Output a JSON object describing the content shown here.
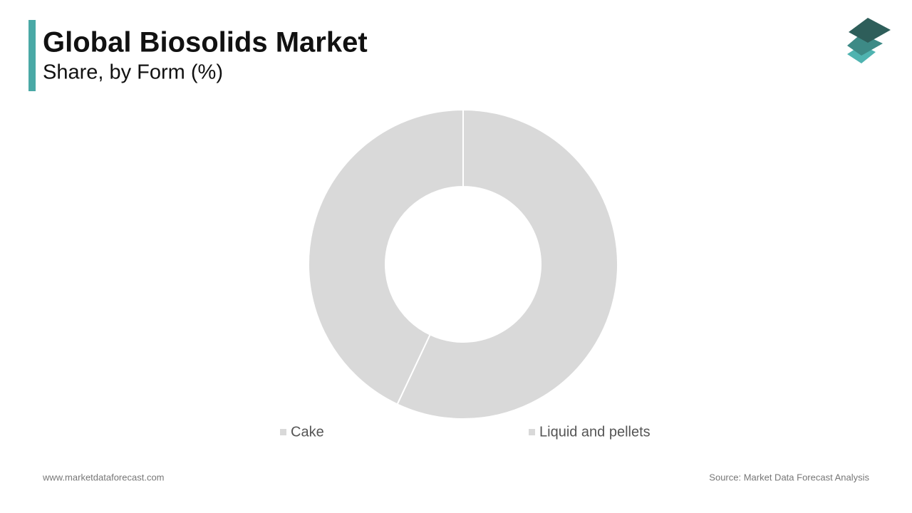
{
  "chart_data": {
    "type": "pie",
    "title": "Global Biosolids Market",
    "subtitle": "Share, by Form (%)",
    "categories": [
      "Cake",
      "Liquid and pellets"
    ],
    "values": [
      57,
      43
    ],
    "colors": [
      "#d9d9d9",
      "#d9d9d9"
    ]
  },
  "footer": {
    "website": "www.marketdataforecast.com",
    "source": "Source: Market Data Forecast Analysis"
  }
}
